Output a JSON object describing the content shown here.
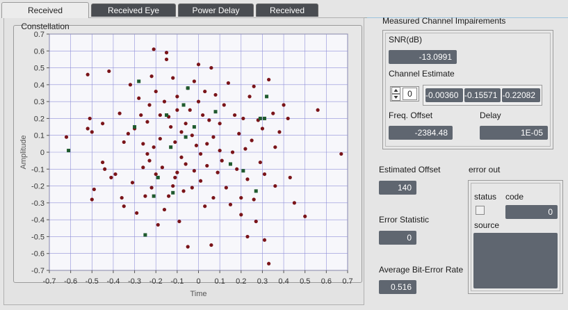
{
  "tabs": [
    {
      "label": "Received Constellation",
      "active": true
    },
    {
      "label": "Received Eye Diagram",
      "active": false
    },
    {
      "label": "Power Delay Profile",
      "active": false
    },
    {
      "label": "Received Signal",
      "active": false
    }
  ],
  "impairments": {
    "title": "Measured Channel Impairements",
    "snr_label": "SNR(dB)",
    "snr_value": "-13.0991",
    "channel_estimate_label": "Channel Estimate",
    "channel_index": "0",
    "channel_values": [
      "-0.00360",
      "-0.15571",
      "-0.22082"
    ],
    "freq_offset_label": "Freq. Offset",
    "freq_offset_value": "-2384.48",
    "delay_label": "Delay",
    "delay_value": "1E-05"
  },
  "estimated_offset": {
    "label": "Estimated Offset",
    "value": "140"
  },
  "error_statistic": {
    "label": "Error Statistic",
    "value": "0"
  },
  "avg_ber": {
    "label": "Average Bit-Error Rate",
    "value": "0.516"
  },
  "error_out": {
    "title": "error out",
    "status_label": "status",
    "code_label": "code",
    "code_value": "0",
    "source_label": "source",
    "source_value": ""
  },
  "colors": {
    "data_points": "#7a1419",
    "pilot_points": "#1f5a2e",
    "grid": "#8f8fd8",
    "indicator_bg": "#5f6670",
    "tab_inactive_bg": "#4a4d52"
  },
  "chart_data": {
    "type": "scatter",
    "xlabel": "Time",
    "ylabel": "Amplitude",
    "xlim": [
      -0.7,
      0.7
    ],
    "ylim": [
      -0.7,
      0.7
    ],
    "x_ticks": [
      "-0.7",
      "-0.6",
      "-0.5",
      "-0.4",
      "-0.3",
      "-0.2",
      "-0.1",
      "0",
      "0.1",
      "0.2",
      "0.3",
      "0.4",
      "0.5",
      "0.6",
      "0.7"
    ],
    "y_ticks": [
      "0.7",
      "0.6",
      "0.5",
      "0.4",
      "0.3",
      "0.2",
      "0.1",
      "0",
      "-0.1",
      "-0.2",
      "-0.3",
      "-0.4",
      "-0.5",
      "-0.6",
      "-0.7"
    ],
    "grid": true,
    "series": [
      {
        "marker": "circle",
        "color": "#7a1419",
        "points": [
          [
            -0.62,
            0.09
          ],
          [
            -0.52,
            0.46
          ],
          [
            -0.52,
            0.14
          ],
          [
            -0.51,
            0.2
          ],
          [
            -0.5,
            0.12
          ],
          [
            -0.5,
            -0.28
          ],
          [
            -0.49,
            -0.22
          ],
          [
            -0.45,
            -0.06
          ],
          [
            -0.42,
            0.48
          ],
          [
            -0.41,
            -0.15
          ],
          [
            -0.39,
            -0.13
          ],
          [
            -0.37,
            0.23
          ],
          [
            -0.36,
            -0.27
          ],
          [
            -0.35,
            -0.32
          ],
          [
            -0.33,
            0.11
          ],
          [
            -0.32,
            0.4
          ],
          [
            -0.31,
            -0.18
          ],
          [
            -0.3,
            0.14
          ],
          [
            -0.29,
            -0.36
          ],
          [
            -0.28,
            0.32
          ],
          [
            -0.27,
            0.22
          ],
          [
            -0.26,
            -0.09
          ],
          [
            -0.26,
            0.05
          ],
          [
            -0.25,
            -0.26
          ],
          [
            -0.24,
            0.18
          ],
          [
            -0.23,
            0.28
          ],
          [
            -0.23,
            -0.05
          ],
          [
            -0.22,
            0.45
          ],
          [
            -0.22,
            -0.21
          ],
          [
            -0.21,
            0.61
          ],
          [
            -0.21,
            0.03
          ],
          [
            -0.2,
            0.36
          ],
          [
            -0.2,
            -0.13
          ],
          [
            -0.19,
            -0.43
          ],
          [
            -0.18,
            0.22
          ],
          [
            -0.18,
            0.08
          ],
          [
            -0.17,
            -0.09
          ],
          [
            -0.16,
            0.3
          ],
          [
            -0.16,
            -0.34
          ],
          [
            -0.15,
            0.59
          ],
          [
            -0.15,
            0.55
          ],
          [
            -0.14,
            0.21
          ],
          [
            -0.14,
            -0.26
          ],
          [
            -0.13,
            0.15
          ],
          [
            -0.12,
            0.44
          ],
          [
            -0.12,
            -0.2
          ],
          [
            -0.11,
            0.06
          ],
          [
            -0.11,
            -0.15
          ],
          [
            -0.1,
            0.33
          ],
          [
            -0.1,
            0.25
          ],
          [
            -0.1,
            -0.12
          ],
          [
            -0.09,
            -0.41
          ],
          [
            -0.08,
            -0.03
          ],
          [
            -0.08,
            0.12
          ],
          [
            -0.07,
            -0.23
          ],
          [
            -0.06,
            0.17
          ],
          [
            -0.06,
            -0.07
          ],
          [
            -0.05,
            0.38
          ],
          [
            -0.05,
            -0.56
          ],
          [
            -0.04,
            0.25
          ],
          [
            -0.03,
            0.1
          ],
          [
            -0.03,
            -0.21
          ],
          [
            -0.02,
            0.42
          ],
          [
            -0.02,
            -0.11
          ],
          [
            -0.01,
            0.04
          ],
          [
            0.0,
            0.3
          ],
          [
            0.0,
            0.52
          ],
          [
            0.01,
            -0.01
          ],
          [
            0.01,
            -0.17
          ],
          [
            0.02,
            0.22
          ],
          [
            0.03,
            0.36
          ],
          [
            0.03,
            -0.32
          ],
          [
            0.04,
            -0.08
          ],
          [
            0.05,
            0.19
          ],
          [
            0.06,
            0.5
          ],
          [
            0.06,
            -0.55
          ],
          [
            0.07,
            0.09
          ],
          [
            0.07,
            -0.27
          ],
          [
            0.08,
            0.34
          ],
          [
            0.09,
            -0.12
          ],
          [
            0.1,
            0.17
          ],
          [
            0.11,
            -0.05
          ],
          [
            0.12,
            0.28
          ],
          [
            0.13,
            -0.21
          ],
          [
            0.14,
            0.41
          ],
          [
            0.15,
            -0.31
          ],
          [
            0.16,
            0.0
          ],
          [
            0.17,
            0.22
          ],
          [
            0.18,
            -0.1
          ],
          [
            0.19,
            0.11
          ],
          [
            0.2,
            -0.37
          ],
          [
            0.21,
            0.2
          ],
          [
            0.22,
            0.02
          ],
          [
            0.23,
            -0.16
          ],
          [
            0.24,
            0.33
          ],
          [
            0.25,
            0.07
          ],
          [
            0.26,
            -0.28
          ],
          [
            0.27,
            -0.41
          ],
          [
            0.28,
            0.19
          ],
          [
            0.29,
            -0.06
          ],
          [
            0.3,
            0.14
          ],
          [
            0.31,
            -0.13
          ],
          [
            0.33,
            0.43
          ],
          [
            0.35,
            0.23
          ],
          [
            0.36,
            -0.2
          ],
          [
            0.38,
            0.12
          ],
          [
            0.4,
            0.28
          ],
          [
            0.42,
            0.2
          ],
          [
            0.43,
            -0.15
          ],
          [
            0.45,
            -0.3
          ],
          [
            0.5,
            -0.38
          ],
          [
            0.56,
            0.25
          ],
          [
            0.67,
            -0.01
          ],
          [
            0.33,
            -0.66
          ],
          [
            0.31,
            -0.52
          ],
          [
            0.36,
            0.03
          ],
          [
            -0.44,
            -0.1
          ],
          [
            0.04,
            0.05
          ],
          [
            -0.24,
            -0.01
          ],
          [
            0.1,
            0.01
          ],
          [
            0.2,
            -0.27
          ],
          [
            -0.35,
            0.06
          ],
          [
            0.26,
            0.39
          ],
          [
            0.23,
            -0.5
          ],
          [
            -0.45,
            0.17
          ]
        ]
      },
      {
        "marker": "square",
        "color": "#1f5a2e",
        "points": [
          [
            -0.61,
            0.01
          ],
          [
            -0.3,
            0.15
          ],
          [
            -0.28,
            0.42
          ],
          [
            -0.25,
            -0.49
          ],
          [
            -0.21,
            -0.26
          ],
          [
            -0.19,
            -0.15
          ],
          [
            -0.15,
            0.22
          ],
          [
            -0.13,
            0.03
          ],
          [
            -0.12,
            -0.24
          ],
          [
            -0.06,
            0.09
          ],
          [
            -0.05,
            0.38
          ],
          [
            0.08,
            0.24
          ],
          [
            0.15,
            -0.07
          ],
          [
            0.21,
            -0.11
          ],
          [
            0.27,
            -0.23
          ],
          [
            0.29,
            0.2
          ],
          [
            0.31,
            0.2
          ],
          [
            0.32,
            0.33
          ],
          [
            -0.07,
            0.28
          ],
          [
            -0.02,
            0.15
          ]
        ]
      }
    ]
  }
}
